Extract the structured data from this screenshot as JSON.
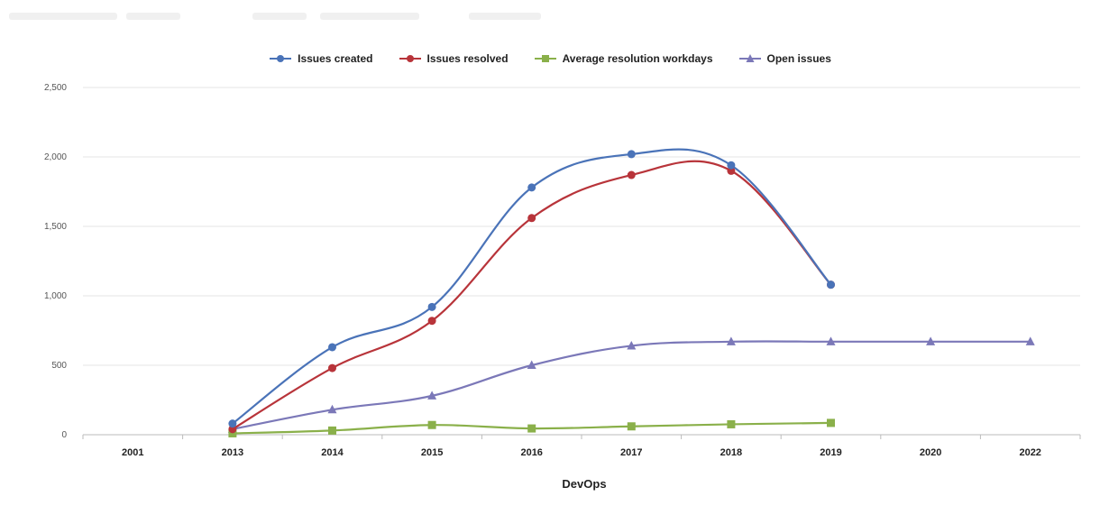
{
  "chart_data": {
    "type": "line",
    "title": "",
    "xlabel": "DevOps",
    "ylabel": "",
    "categories": [
      "2001",
      "2013",
      "2014",
      "2015",
      "2016",
      "2017",
      "2018",
      "2019",
      "2020",
      "2022"
    ],
    "y_ticks": [
      "0",
      "500",
      "1,000",
      "1,500",
      "2,000",
      "2,500"
    ],
    "ylim": [
      0,
      2500
    ],
    "grid": true,
    "legend_position": "top-center",
    "series": [
      {
        "name": "Issues created",
        "color": "#4a73b8",
        "marker": "circle",
        "values": [
          null,
          80,
          630,
          920,
          1780,
          2020,
          1940,
          1080,
          null,
          null
        ]
      },
      {
        "name": "Issues resolved",
        "color": "#b8343a",
        "marker": "circle",
        "values": [
          null,
          40,
          480,
          820,
          1560,
          1870,
          1900,
          1080,
          null,
          null
        ]
      },
      {
        "name": "Average resolution workdays",
        "color": "#8ab04a",
        "marker": "square",
        "values": [
          null,
          10,
          30,
          70,
          45,
          60,
          75,
          85,
          null,
          null
        ]
      },
      {
        "name": "Open issues",
        "color": "#7b78b8",
        "marker": "triangle",
        "values": [
          null,
          40,
          180,
          280,
          500,
          640,
          670,
          670,
          670,
          670
        ]
      }
    ]
  }
}
